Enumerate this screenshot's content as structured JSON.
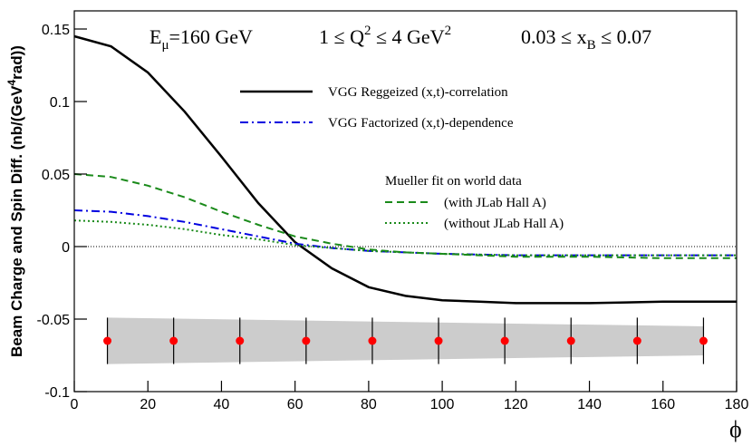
{
  "chart_data": {
    "type": "line",
    "annotations": [
      [
        "E",
        "μ",
        "=160 GeV"
      ],
      [
        "1 ≤ Q",
        "2",
        " ≤ 4 GeV",
        "2"
      ],
      [
        "0.03 ≤ x",
        "B",
        " ≤ 0.07"
      ]
    ],
    "y_label": [
      "Beam Charge and Spin Diff. (nb/(GeV",
      "4",
      "rad))"
    ],
    "x_label": "ϕ",
    "legend_header": "Mueller fit on world data",
    "x": [
      0,
      10,
      20,
      30,
      40,
      50,
      60,
      70,
      80,
      90,
      100,
      110,
      120,
      130,
      140,
      150,
      160,
      170,
      180
    ],
    "series": [
      {
        "name": "VGG Reggeized (x,t)-correlation",
        "color": "#000000",
        "style": "solid",
        "values": [
          0.145,
          0.138,
          0.12,
          0.093,
          0.062,
          0.03,
          0.003,
          -0.015,
          -0.028,
          -0.034,
          -0.037,
          -0.038,
          -0.039,
          -0.039,
          -0.039,
          -0.0385,
          -0.038,
          -0.038,
          -0.038
        ]
      },
      {
        "name": "VGG Factorized (x,t)-dependence",
        "color": "#0000e0",
        "style": "dashdot",
        "values": [
          0.025,
          0.024,
          0.021,
          0.017,
          0.012,
          0.007,
          0.002,
          -0.001,
          -0.003,
          -0.004,
          -0.005,
          -0.0055,
          -0.006,
          -0.006,
          -0.006,
          -0.006,
          -0.006,
          -0.006,
          -0.006
        ]
      },
      {
        "name": "(with JLab Hall A)",
        "color": "#1a8a1a",
        "style": "dashed",
        "values": [
          0.05,
          0.048,
          0.042,
          0.034,
          0.024,
          0.015,
          0.007,
          0.002,
          -0.002,
          -0.004,
          -0.005,
          -0.006,
          -0.007,
          -0.007,
          -0.007,
          -0.0075,
          -0.008,
          -0.008,
          -0.008
        ]
      },
      {
        "name": "(without JLab Hall A)",
        "color": "#1a8a1a",
        "style": "dotted",
        "values": [
          0.018,
          0.017,
          0.015,
          0.012,
          0.008,
          0.005,
          0.001,
          -0.001,
          -0.003,
          -0.004,
          -0.005,
          -0.0055,
          -0.006,
          -0.006,
          -0.006,
          -0.006,
          -0.006,
          -0.006,
          -0.006
        ]
      }
    ],
    "points": {
      "color": "#ff0000",
      "x": [
        9,
        27,
        45,
        63,
        81,
        99,
        117,
        135,
        153,
        171
      ],
      "values": [
        -0.065,
        -0.065,
        -0.065,
        -0.065,
        -0.065,
        -0.065,
        -0.065,
        -0.065,
        -0.065,
        -0.065
      ],
      "errors": [
        0.016,
        0.016,
        0.016,
        0.016,
        0.016,
        0.016,
        0.016,
        0.016,
        0.016,
        0.016
      ]
    },
    "band": {
      "color": "#cccccc",
      "x": [
        9,
        171
      ],
      "lower": [
        -0.081,
        -0.075
      ],
      "upper": [
        -0.049,
        -0.055
      ]
    },
    "xlim": [
      0,
      180
    ],
    "ylim": [
      -0.1,
      0.1625
    ],
    "xticks": [
      0,
      20,
      40,
      60,
      80,
      100,
      120,
      140,
      160,
      180
    ],
    "yticks": [
      -0.1,
      -0.05,
      0,
      0.05,
      0.1,
      0.15
    ]
  }
}
